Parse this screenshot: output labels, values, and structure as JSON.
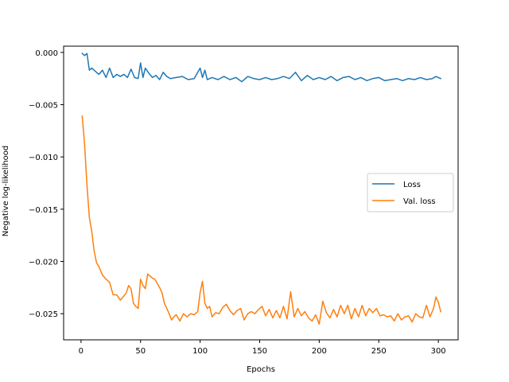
{
  "chart_data": {
    "type": "line",
    "title": "",
    "xlabel": "Epochs",
    "ylabel": "Negative log-likelihood",
    "xlim": [
      -14.6,
      316.6
    ],
    "ylim": [
      -0.0275,
      0.0006
    ],
    "xticks": [
      0,
      50,
      100,
      150,
      200,
      250,
      300
    ],
    "xtick_labels": [
      "0",
      "50",
      "100",
      "150",
      "200",
      "250",
      "300"
    ],
    "yticks": [
      0.0,
      -0.005,
      -0.01,
      -0.015,
      -0.02,
      -0.025
    ],
    "ytick_labels": [
      "0.000",
      "−0.005",
      "−0.010",
      "−0.015",
      "−0.020",
      "−0.025"
    ],
    "grid": false,
    "legend_position": "center-right",
    "series": [
      {
        "name": "Loss",
        "color": "#1f77b4",
        "x": [
          1,
          3,
          5,
          7,
          9,
          12,
          15,
          18,
          21,
          24,
          27,
          30,
          33,
          36,
          39,
          42,
          45,
          48,
          50,
          52,
          54,
          57,
          60,
          63,
          66,
          69,
          72,
          75,
          80,
          85,
          90,
          95,
          100,
          102,
          104,
          106,
          110,
          115,
          120,
          125,
          130,
          135,
          140,
          145,
          150,
          155,
          160,
          165,
          170,
          175,
          180,
          185,
          190,
          195,
          200,
          205,
          210,
          215,
          220,
          225,
          230,
          235,
          240,
          245,
          250,
          255,
          260,
          265,
          270,
          275,
          280,
          285,
          290,
          295,
          298,
          300,
          302
        ],
        "y": [
          -0.0001,
          -0.0003,
          -0.0001,
          -0.0017,
          -0.0015,
          -0.0018,
          -0.0021,
          -0.0017,
          -0.0024,
          -0.0015,
          -0.0024,
          -0.0021,
          -0.0023,
          -0.0021,
          -0.0024,
          -0.0016,
          -0.0024,
          -0.0025,
          -0.001,
          -0.0024,
          -0.0015,
          -0.002,
          -0.0024,
          -0.0022,
          -0.0026,
          -0.0019,
          -0.0023,
          -0.0025,
          -0.0024,
          -0.0023,
          -0.0026,
          -0.0025,
          -0.0015,
          -0.0024,
          -0.0017,
          -0.0026,
          -0.0024,
          -0.0026,
          -0.0023,
          -0.0026,
          -0.0024,
          -0.0028,
          -0.0023,
          -0.0025,
          -0.0026,
          -0.0024,
          -0.0026,
          -0.0025,
          -0.0023,
          -0.0025,
          -0.0019,
          -0.0027,
          -0.0022,
          -0.0026,
          -0.0024,
          -0.0026,
          -0.0023,
          -0.0027,
          -0.0024,
          -0.0023,
          -0.0026,
          -0.0024,
          -0.0027,
          -0.0025,
          -0.0024,
          -0.0027,
          -0.0026,
          -0.0025,
          -0.0027,
          -0.0025,
          -0.0026,
          -0.0024,
          -0.0026,
          -0.0025,
          -0.0023,
          -0.0024,
          -0.0025
        ]
      },
      {
        "name": "Val. loss",
        "color": "#ff7f0e",
        "x": [
          1,
          3,
          5,
          7,
          9,
          11,
          13,
          15,
          18,
          21,
          24,
          27,
          30,
          33,
          36,
          38,
          40,
          42,
          44,
          46,
          48,
          50,
          52,
          54,
          56,
          58,
          60,
          62,
          64,
          66,
          68,
          70,
          72,
          74,
          76,
          78,
          80,
          83,
          86,
          89,
          92,
          95,
          98,
          100,
          102,
          104,
          106,
          108,
          110,
          113,
          116,
          119,
          122,
          125,
          128,
          131,
          134,
          137,
          140,
          143,
          146,
          149,
          152,
          155,
          158,
          161,
          164,
          167,
          170,
          173,
          176,
          179,
          182,
          185,
          188,
          191,
          194,
          197,
          200,
          203,
          206,
          209,
          212,
          215,
          218,
          221,
          224,
          227,
          230,
          233,
          236,
          239,
          242,
          245,
          248,
          251,
          254,
          257,
          260,
          263,
          266,
          269,
          272,
          275,
          278,
          281,
          284,
          287,
          290,
          293,
          296,
          298,
          300,
          302
        ],
        "y": [
          -0.0061,
          -0.0088,
          -0.0127,
          -0.0158,
          -0.0171,
          -0.019,
          -0.0201,
          -0.0205,
          -0.0213,
          -0.0217,
          -0.022,
          -0.0232,
          -0.0232,
          -0.0237,
          -0.0233,
          -0.023,
          -0.0223,
          -0.0226,
          -0.024,
          -0.0243,
          -0.0245,
          -0.0217,
          -0.0223,
          -0.0226,
          -0.0212,
          -0.0214,
          -0.0216,
          -0.0217,
          -0.0221,
          -0.0225,
          -0.023,
          -0.024,
          -0.0245,
          -0.025,
          -0.0256,
          -0.0253,
          -0.0251,
          -0.0257,
          -0.025,
          -0.0253,
          -0.025,
          -0.0251,
          -0.0248,
          -0.023,
          -0.0219,
          -0.024,
          -0.0245,
          -0.0243,
          -0.0253,
          -0.0249,
          -0.025,
          -0.0244,
          -0.0241,
          -0.0247,
          -0.0251,
          -0.0247,
          -0.0245,
          -0.0256,
          -0.025,
          -0.0248,
          -0.025,
          -0.0246,
          -0.0243,
          -0.0252,
          -0.0246,
          -0.0254,
          -0.0247,
          -0.0254,
          -0.0243,
          -0.0255,
          -0.0229,
          -0.0253,
          -0.0245,
          -0.0252,
          -0.0248,
          -0.0254,
          -0.0257,
          -0.0251,
          -0.026,
          -0.0238,
          -0.0249,
          -0.0254,
          -0.0246,
          -0.0253,
          -0.0242,
          -0.025,
          -0.0242,
          -0.0255,
          -0.0245,
          -0.0253,
          -0.0242,
          -0.0252,
          -0.0245,
          -0.0249,
          -0.0245,
          -0.0252,
          -0.0251,
          -0.0253,
          -0.0252,
          -0.0257,
          -0.025,
          -0.0256,
          -0.0253,
          -0.0252,
          -0.0258,
          -0.025,
          -0.0253,
          -0.0254,
          -0.0242,
          -0.0253,
          -0.0245,
          -0.0234,
          -0.0239,
          -0.0248
        ]
      }
    ]
  }
}
